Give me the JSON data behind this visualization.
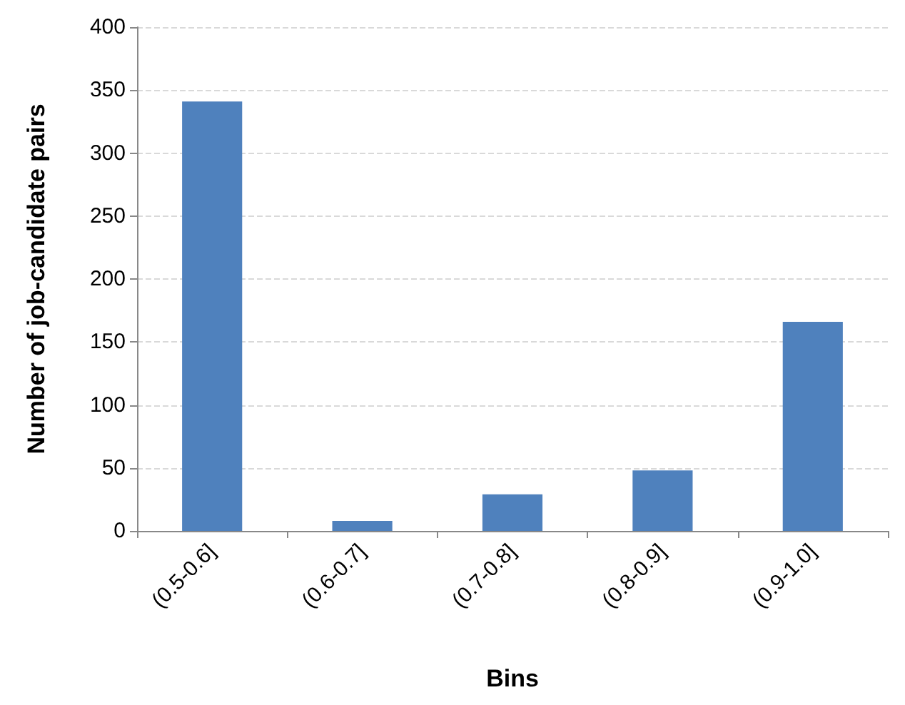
{
  "chart_data": {
    "type": "bar",
    "xlabel": "Bins",
    "ylabel": "Number of job-candidate pairs",
    "categories": [
      "(0.5-0.6]",
      "(0.6-0.7]",
      "(0.7-0.8]",
      "(0.8-0.9]",
      "(0.9-1.0]"
    ],
    "values": [
      341,
      8,
      29,
      48,
      166
    ],
    "color": "#4f81bd",
    "ylim": [
      0,
      400
    ],
    "yticks": [
      0,
      50,
      100,
      150,
      200,
      250,
      300,
      350,
      400
    ],
    "grid": "y"
  }
}
